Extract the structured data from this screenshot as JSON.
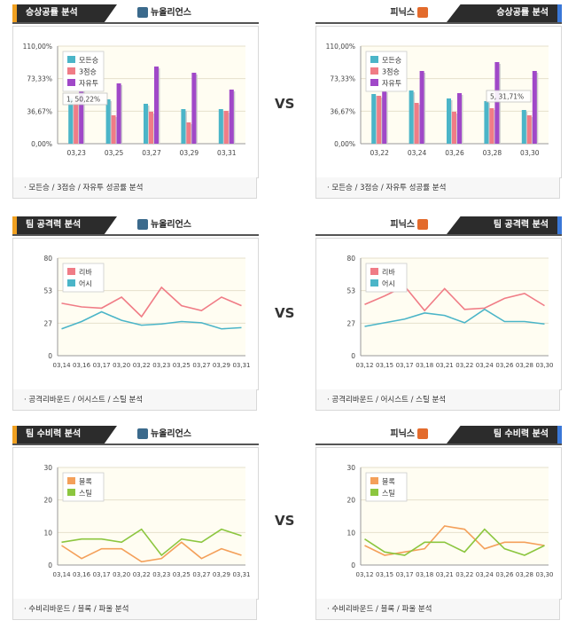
{
  "vs_label": "VS",
  "teams": {
    "left": {
      "name": "뉴올리언스",
      "logo_color": "#3b6a8c"
    },
    "right": {
      "name": "피닉스",
      "logo_color": "#e36b2c"
    }
  },
  "sections": [
    {
      "title": "승상공률 분석",
      "footer": "모든승 / 3점승 / 자유투 성공률 분석",
      "charts": [
        {
          "chart_data": {
            "type": "bar",
            "yticks": [
              "110,00%",
              "73,33%",
              "36,67%",
              "0,00%"
            ],
            "ylim": [
              0,
              110
            ],
            "categories": [
              "03,23",
              "03,25",
              "03,27",
              "03,29",
              "03,31"
            ],
            "series": [
              {
                "name": "모든승",
                "color": "#4bb5c8",
                "values": [
                  51,
                  50,
                  45,
                  39,
                  39
                ]
              },
              {
                "name": "3점승",
                "color": "#f07c86",
                "values": [
                  49,
                  32,
                  36,
                  24,
                  37
                ]
              },
              {
                "name": "자유투",
                "color": "#a048c8",
                "values": [
                  64,
                  68,
                  87,
                  80,
                  61
                ]
              }
            ],
            "legend": "top-left",
            "tooltip": "1, 50,22%"
          }
        },
        {
          "chart_data": {
            "type": "bar",
            "yticks": [
              "110,00%",
              "73,33%",
              "36,67%",
              "0,00%"
            ],
            "ylim": [
              0,
              110
            ],
            "categories": [
              "03,22",
              "03,24",
              "03,26",
              "03,28",
              "03,30"
            ],
            "series": [
              {
                "name": "모든승",
                "color": "#4bb5c8",
                "values": [
                  56,
                  60,
                  51,
                  48,
                  38
                ]
              },
              {
                "name": "3점승",
                "color": "#f07c86",
                "values": [
                  54,
                  46,
                  36,
                  40,
                  32
                ]
              },
              {
                "name": "자유투",
                "color": "#a048c8",
                "values": [
                  60,
                  82,
                  57,
                  92,
                  82
                ]
              }
            ],
            "legend": "top-left",
            "tooltip": "5, 31,71%"
          }
        }
      ]
    },
    {
      "title": "팀 공격력 분석",
      "footer": "공격리바운드 / 어시스트 / 스틸 분석",
      "charts": [
        {
          "chart_data": {
            "type": "line",
            "yticks": [
              "80",
              "53",
              "27",
              "0"
            ],
            "ylim": [
              0,
              80
            ],
            "categories": [
              "03,14",
              "03,16",
              "03,17",
              "03,20",
              "03,22",
              "03,23",
              "03,25",
              "03,27",
              "03,29",
              "03,31"
            ],
            "series": [
              {
                "name": "리바",
                "color": "#f07c86",
                "values": [
                  43,
                  40,
                  39,
                  48,
                  32,
                  56,
                  41,
                  37,
                  48,
                  41
                ]
              },
              {
                "name": "어시",
                "color": "#4bb5c8",
                "values": [
                  22,
                  28,
                  36,
                  29,
                  25,
                  26,
                  28,
                  27,
                  22,
                  23
                ]
              }
            ],
            "legend": "top-left"
          }
        },
        {
          "chart_data": {
            "type": "line",
            "yticks": [
              "80",
              "53",
              "27",
              "0"
            ],
            "ylim": [
              0,
              80
            ],
            "categories": [
              "03,12",
              "03,15",
              "03,17",
              "03,18",
              "03,21",
              "03,22",
              "03,24",
              "03,26",
              "03,28",
              "03,30"
            ],
            "series": [
              {
                "name": "리바",
                "color": "#f07c86",
                "values": [
                  42,
                  49,
                  57,
                  37,
                  55,
                  38,
                  39,
                  47,
                  51,
                  41
                ]
              },
              {
                "name": "어시",
                "color": "#4bb5c8",
                "values": [
                  24,
                  27,
                  30,
                  35,
                  33,
                  27,
                  38,
                  28,
                  28,
                  26
                ]
              }
            ],
            "legend": "top-left"
          }
        }
      ]
    },
    {
      "title": "팀 수비력 분석",
      "footer": "수비리바운드 / 블록 / 파울 분석",
      "charts": [
        {
          "chart_data": {
            "type": "line",
            "yticks": [
              "30",
              "20",
              "10",
              "0"
            ],
            "ylim": [
              0,
              30
            ],
            "categories": [
              "03,14",
              "03,16",
              "03,17",
              "03,20",
              "03,22",
              "03,23",
              "03,25",
              "03,27",
              "03,29",
              "03,31"
            ],
            "series": [
              {
                "name": "블록",
                "color": "#f4a05a",
                "values": [
                  6,
                  2,
                  5,
                  5,
                  1,
                  2,
                  7,
                  2,
                  5,
                  3
                ]
              },
              {
                "name": "스틸",
                "color": "#8cc63f",
                "values": [
                  7,
                  8,
                  8,
                  7,
                  11,
                  3,
                  8,
                  7,
                  11,
                  9
                ]
              }
            ],
            "legend": "top-left"
          }
        },
        {
          "chart_data": {
            "type": "line",
            "yticks": [
              "30",
              "20",
              "10",
              "0"
            ],
            "ylim": [
              0,
              30
            ],
            "categories": [
              "03,12",
              "03,15",
              "03,17",
              "03,18",
              "03,21",
              "03,22",
              "03,24",
              "03,26",
              "03,28",
              "03,30"
            ],
            "series": [
              {
                "name": "블록",
                "color": "#f4a05a",
                "values": [
                  6,
                  3,
                  4,
                  5,
                  12,
                  11,
                  5,
                  7,
                  7,
                  6
                ]
              },
              {
                "name": "스틸",
                "color": "#8cc63f",
                "values": [
                  8,
                  4,
                  3,
                  7,
                  7,
                  4,
                  11,
                  5,
                  3,
                  6
                ]
              }
            ],
            "legend": "top-left"
          }
        }
      ]
    }
  ]
}
